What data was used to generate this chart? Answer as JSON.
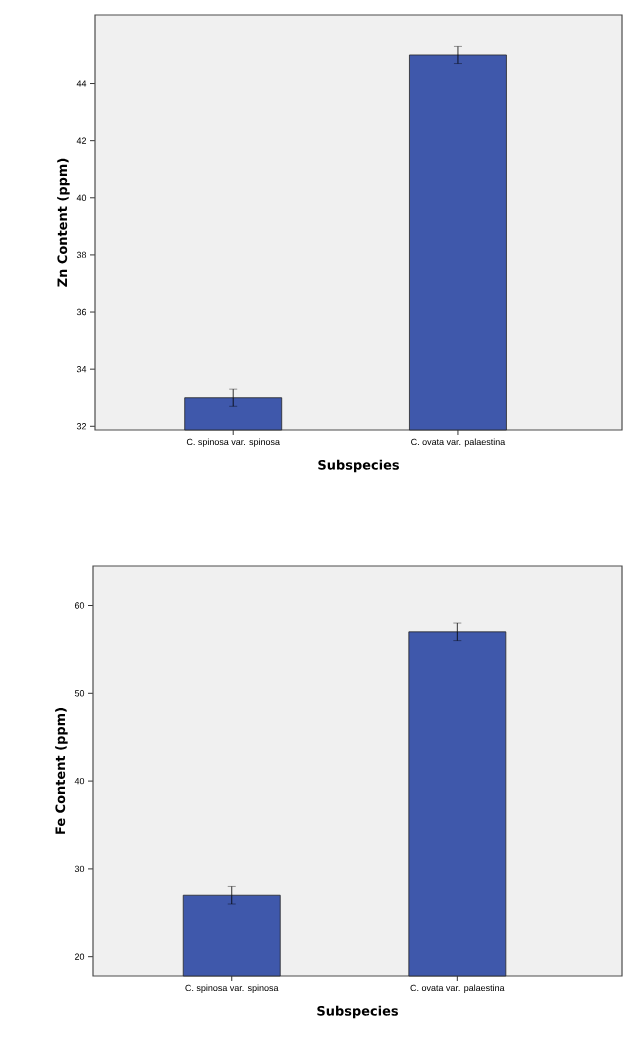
{
  "chart_data": [
    {
      "type": "bar",
      "categories": [
        "C. spinosa var. spinosa",
        "C. ovata var. palaestina"
      ],
      "values": [
        33.0,
        45.0
      ],
      "errors": [
        0.3,
        0.3
      ],
      "color": "#3f58ab",
      "xlabel": "Subspecies",
      "ylabel": "Zn Content (ppm)",
      "ylim": [
        31.87,
        46.4
      ],
      "yticks": [
        32,
        34,
        36,
        38,
        40,
        42,
        44
      ]
    },
    {
      "type": "bar",
      "categories": [
        "C. spinosa var. spinosa",
        "C. ovata var. palaestina"
      ],
      "values": [
        27,
        57
      ],
      "errors": [
        1.0,
        1.0
      ],
      "color": "#3f58ab",
      "xlabel": "Subspecies",
      "ylabel": "Fe Content (ppm)",
      "ylim": [
        17.8,
        64.5
      ],
      "yticks": [
        20,
        30,
        40,
        50,
        60
      ]
    }
  ]
}
